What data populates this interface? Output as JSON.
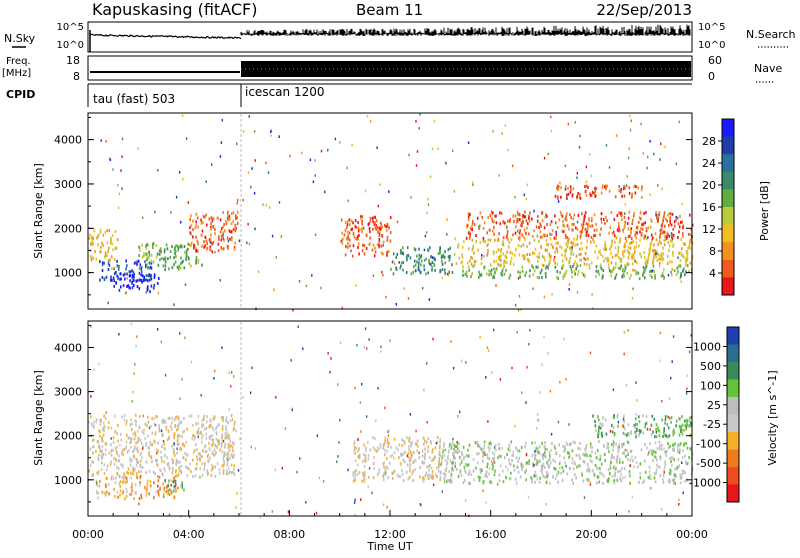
{
  "header": {
    "station": "Kapuskasing (fitACF)",
    "beam": "Beam 11",
    "date": "22/Sep/2013"
  },
  "nsky_panel": {
    "left_label": "N.Sky",
    "left_ticks": [
      "10^5",
      "10^0"
    ],
    "right_label": "N.Search",
    "right_ticks": [
      "10^5",
      "10^0"
    ]
  },
  "freq_panel": {
    "left_label": "Freq.",
    "left_unit": "[MHz]",
    "left_ticks": [
      "18",
      "8"
    ],
    "right_label": "Nave",
    "right_ticks": [
      "60",
      "0"
    ]
  },
  "cpid_panel": {
    "label": "CPID",
    "modes": [
      {
        "name": "tau (fast) 503",
        "start_hour": 0
      },
      {
        "name": "icescan 1200",
        "start_hour": 6
      }
    ]
  },
  "colors": {
    "power_scale": [
      "#1a1aff",
      "#1f3fa8",
      "#2a6fa0",
      "#3a8a6a",
      "#5fae3f",
      "#b9c83c",
      "#f0c020",
      "#f39020",
      "#f05a1e",
      "#e8151b"
    ],
    "velocity_scale": [
      "#1f3fb0",
      "#2a6f8f",
      "#3b8a5b",
      "#66c23a",
      "#bdbdbd",
      "#c8c8c8",
      "#f5b12a",
      "#f07a1e",
      "#ef4b1c",
      "#e8151b"
    ]
  },
  "chart_data": [
    {
      "type": "heatmap",
      "title": "",
      "xlabel": "",
      "ylabel": "Slant Range [km]",
      "colorbar_label": "Power [dB]",
      "colorbar_ticks": [
        "28",
        "24",
        "20",
        "16",
        "12",
        "8",
        "4"
      ],
      "xlim": [
        0,
        24
      ],
      "ylim": [
        180,
        4600
      ],
      "yticks": [
        "1000",
        "2000",
        "3000",
        "4000"
      ],
      "scatter_regions": [
        {
          "t0": 0.0,
          "t1": 1.2,
          "r0": 1300,
          "r1": 2000,
          "level": 3
        },
        {
          "t0": 0.3,
          "t1": 2.5,
          "r0": 850,
          "r1": 1300,
          "level": 8
        },
        {
          "t0": 1.0,
          "t1": 2.8,
          "r0": 600,
          "r1": 1000,
          "level": 9
        },
        {
          "t0": 2.0,
          "t1": 4.5,
          "r0": 1100,
          "r1": 1700,
          "level": 5
        },
        {
          "t0": 4.0,
          "t1": 6.0,
          "r0": 1500,
          "r1": 2400,
          "level": 1
        },
        {
          "t0": 10.0,
          "t1": 12.0,
          "r0": 1400,
          "r1": 2300,
          "level": 1
        },
        {
          "t0": 12.0,
          "t1": 14.5,
          "r0": 1000,
          "r1": 1600,
          "level": 6
        },
        {
          "t0": 14.5,
          "t1": 24.0,
          "r0": 900,
          "r1": 1200,
          "level": 5
        },
        {
          "t0": 14.5,
          "t1": 24.0,
          "r0": 1200,
          "r1": 1800,
          "level": 3
        },
        {
          "t0": 15.0,
          "t1": 24.0,
          "r0": 1800,
          "r1": 2400,
          "level": 1
        },
        {
          "t0": 18.5,
          "t1": 22.0,
          "r0": 2700,
          "r1": 3000,
          "level": 1
        }
      ]
    },
    {
      "type": "heatmap",
      "title": "",
      "xlabel": "Time UT",
      "ylabel": "Slant Range [km]",
      "colorbar_label": "Velocity [m s^-1]",
      "colorbar_ticks": [
        "1000",
        "500",
        "100",
        "25",
        "-25",
        "-100",
        "-500",
        "-1000"
      ],
      "xlim": [
        0,
        24
      ],
      "ylim": [
        180,
        4600
      ],
      "xticks": [
        "00:00",
        "04:00",
        "08:00",
        "12:00",
        "16:00",
        "20:00",
        "00:00"
      ],
      "yticks": [
        "1000",
        "2000",
        "3000",
        "4000"
      ],
      "scatter_regions": [
        {
          "t0": 0.0,
          "t1": 5.8,
          "r0": 1100,
          "r1": 2500,
          "level": 4
        },
        {
          "t0": 0.3,
          "t1": 3.5,
          "r0": 600,
          "r1": 1100,
          "level": 3
        },
        {
          "t0": 3.0,
          "t1": 3.8,
          "r0": 750,
          "r1": 1050,
          "level": 6
        },
        {
          "t0": 10.5,
          "t1": 14.0,
          "r0": 1000,
          "r1": 2000,
          "level": 4
        },
        {
          "t0": 14.0,
          "t1": 24.0,
          "r0": 950,
          "r1": 1900,
          "level": 5
        },
        {
          "t0": 20.0,
          "t1": 24.0,
          "r0": 2000,
          "r1": 2500,
          "level": 6
        }
      ]
    }
  ]
}
